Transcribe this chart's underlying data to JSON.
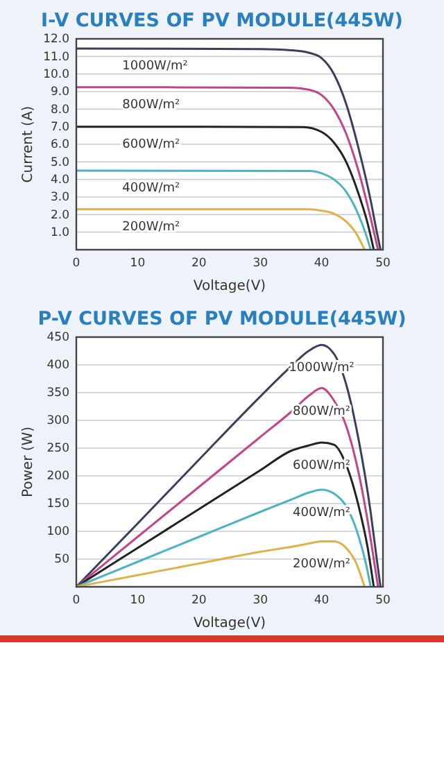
{
  "chart_data": [
    {
      "type": "line",
      "title": "I-V CURVES OF PV MODULE(445W)",
      "xlabel": "Voltage(V)",
      "ylabel": "Current (A)",
      "xlim": [
        0,
        50
      ],
      "xticks": [
        0,
        10,
        20,
        30,
        40,
        50
      ],
      "ylim": [
        0,
        12
      ],
      "yticks": [
        {
          "value": 1,
          "label": "1.0"
        },
        {
          "value": 2,
          "label": "2.0"
        },
        {
          "value": 3,
          "label": "3.0"
        },
        {
          "value": 4,
          "label": "4.0"
        },
        {
          "value": 5,
          "label": "5.0"
        },
        {
          "value": 6,
          "label": "6.0"
        },
        {
          "value": 7,
          "label": "7.0"
        },
        {
          "value": 8,
          "label": "8.0"
        },
        {
          "value": 9,
          "label": "9.0"
        },
        {
          "value": 10,
          "label": "10.0"
        },
        {
          "value": 11,
          "label": "11.0"
        },
        {
          "value": 12,
          "label": "12.0"
        }
      ],
      "grid": "y",
      "legend": false,
      "marker": "none",
      "line_style": "solid",
      "series": [
        {
          "name": "1000W/m²",
          "color": "#3a3f5c",
          "x": [
            0,
            30,
            35,
            38,
            40,
            42,
            44,
            46,
            48,
            49,
            49.6
          ],
          "values": [
            11.45,
            11.42,
            11.35,
            11.2,
            10.9,
            10.0,
            8.3,
            5.8,
            2.8,
            1.0,
            0
          ]
        },
        {
          "name": "800W/m²",
          "color": "#c2448a",
          "x": [
            0,
            35,
            38,
            40,
            42,
            44,
            46,
            48,
            49.2
          ],
          "values": [
            9.25,
            9.22,
            9.1,
            8.8,
            8.0,
            6.6,
            4.5,
            1.8,
            0
          ]
        },
        {
          "name": "600W/m²",
          "color": "#222222",
          "x": [
            0,
            37,
            40,
            42,
            44,
            46,
            47.5,
            48.5
          ],
          "values": [
            7.0,
            6.98,
            6.7,
            6.1,
            5.0,
            3.2,
            1.5,
            0
          ]
        },
        {
          "name": "400W/m²",
          "color": "#4db3c2",
          "x": [
            0,
            38,
            40,
            42,
            44,
            46,
            47.3,
            48
          ],
          "values": [
            4.5,
            4.48,
            4.35,
            4.0,
            3.3,
            2.0,
            0.8,
            0
          ]
        },
        {
          "name": "200W/m²",
          "color": "#e0b04a",
          "x": [
            0,
            38,
            40,
            42,
            44,
            45.5,
            47
          ],
          "values": [
            2.3,
            2.3,
            2.22,
            2.05,
            1.6,
            1.0,
            0
          ]
        }
      ]
    },
    {
      "type": "line",
      "title": "P-V CURVES OF PV MODULE(445W)",
      "xlabel": "Voltage(V)",
      "ylabel": "Power (W)",
      "xlim": [
        0,
        50
      ],
      "xticks": [
        0,
        10,
        20,
        30,
        40,
        50
      ],
      "ylim": [
        0,
        450
      ],
      "yticks": [
        50,
        100,
        150,
        200,
        250,
        300,
        350,
        400,
        450
      ],
      "grid": "y",
      "legend": false,
      "marker": "none",
      "line_style": "solid",
      "series": [
        {
          "name": "1000W/m²",
          "color": "#3a3f5c",
          "x": [
            0,
            10,
            20,
            30,
            35,
            38,
            40,
            42,
            44,
            46,
            48,
            49,
            49.6
          ],
          "values": [
            0,
            114,
            229,
            343,
            397,
            426,
            436,
            420,
            365,
            267,
            134,
            49,
            0
          ]
        },
        {
          "name": "800W/m²",
          "color": "#c2448a",
          "x": [
            0,
            10,
            20,
            30,
            35,
            38,
            40,
            42,
            44,
            46,
            48,
            49.2
          ],
          "values": [
            0,
            90,
            180,
            270,
            315,
            345,
            358,
            336,
            290,
            207,
            86,
            0
          ]
        },
        {
          "name": "600W/m²",
          "color": "#222222",
          "x": [
            0,
            10,
            20,
            30,
            35,
            38,
            40,
            42,
            44,
            46,
            47.5,
            48.5
          ],
          "values": [
            0,
            70,
            140,
            210,
            245,
            255,
            260,
            256,
            220,
            147,
            71,
            0
          ]
        },
        {
          "name": "400W/m²",
          "color": "#4db3c2",
          "x": [
            0,
            10,
            20,
            30,
            35,
            38,
            40,
            42,
            44,
            46,
            47.3,
            48
          ],
          "values": [
            0,
            45,
            90,
            135,
            157,
            170,
            175,
            168,
            145,
            92,
            38,
            0
          ]
        },
        {
          "name": "200W/m²",
          "color": "#e0b04a",
          "x": [
            0,
            10,
            20,
            30,
            35,
            38,
            40,
            42,
            44,
            45.5,
            47
          ],
          "values": [
            0,
            21,
            42,
            63,
            72,
            78,
            82,
            82,
            70,
            46,
            0
          ]
        }
      ]
    }
  ]
}
